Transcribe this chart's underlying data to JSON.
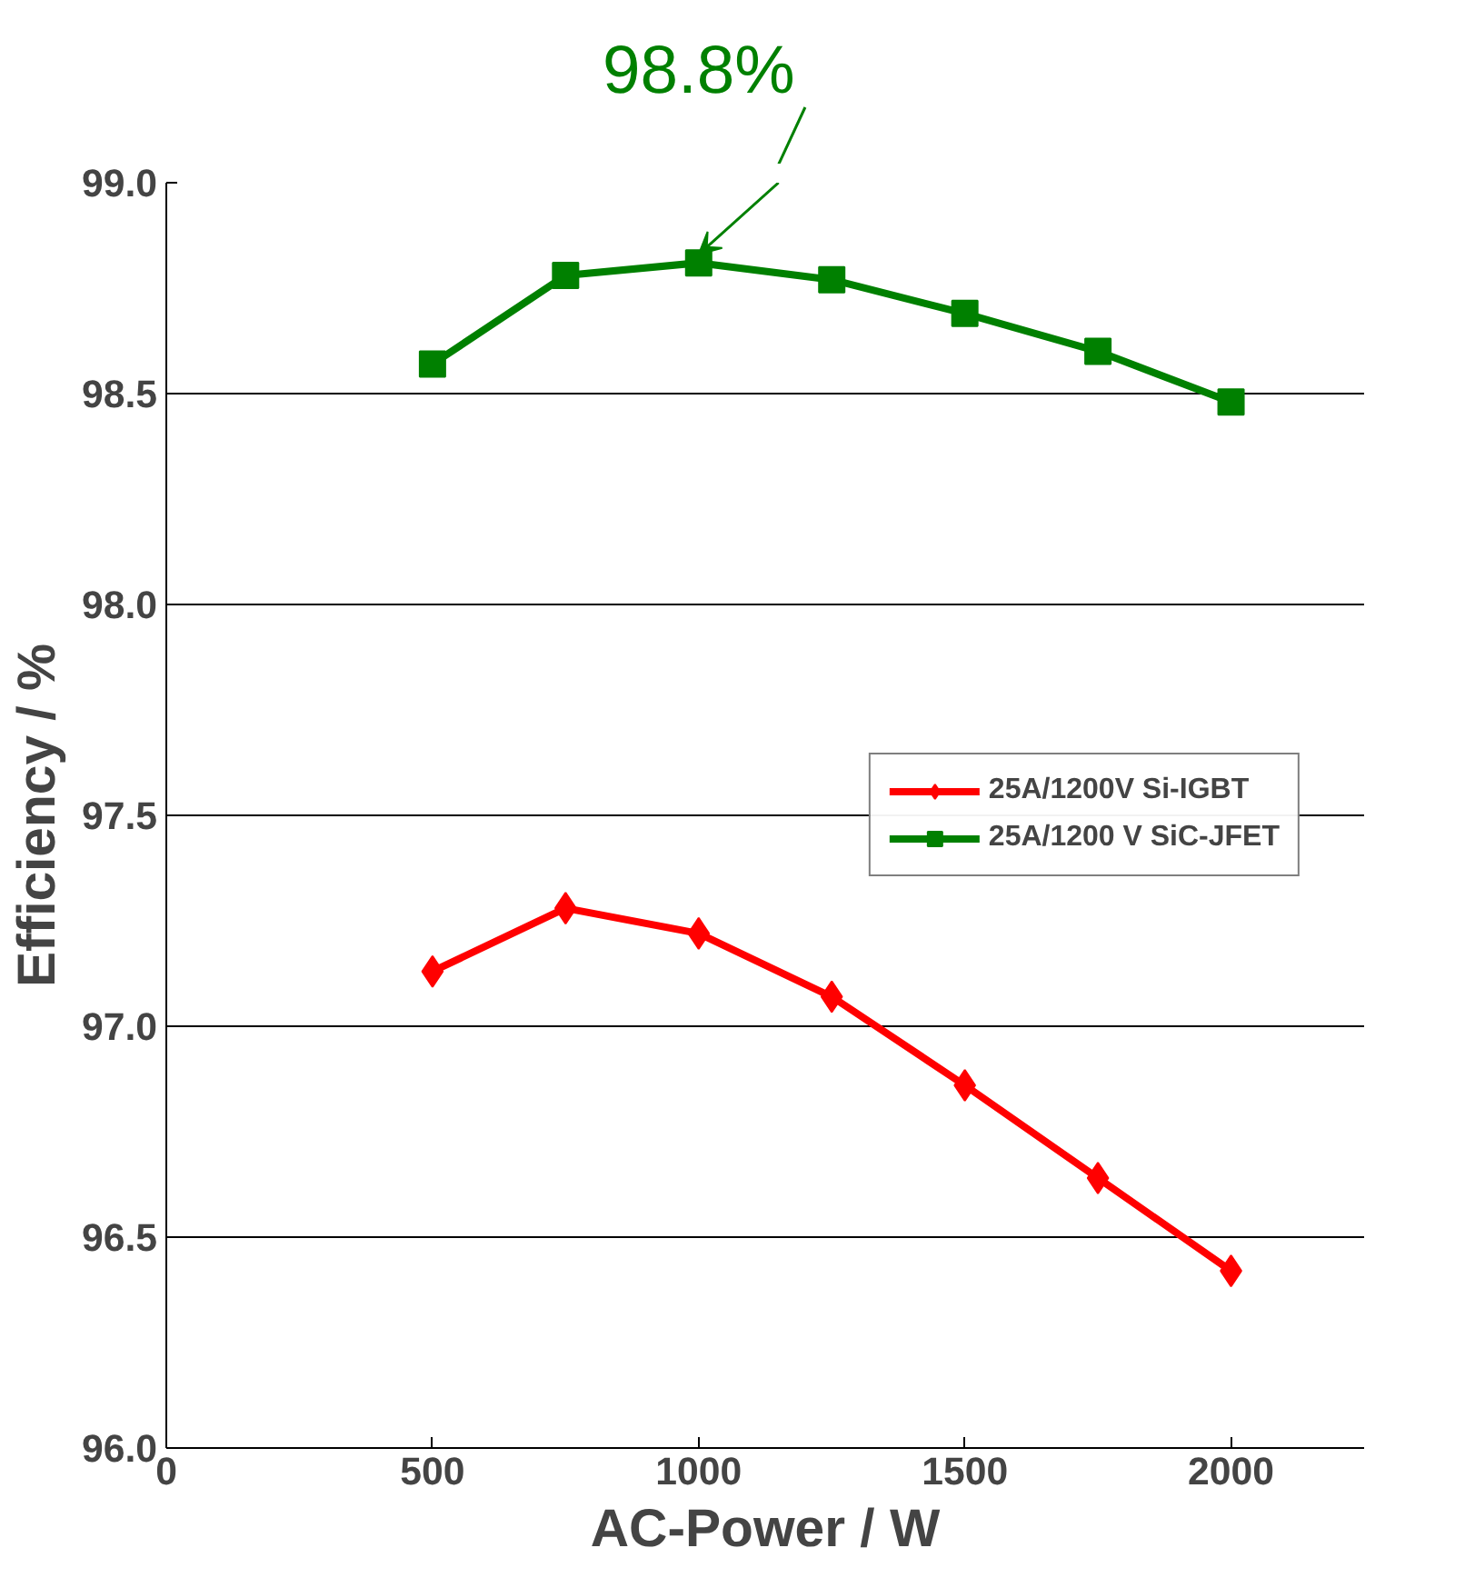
{
  "chart_data": {
    "type": "line",
    "xlabel": "AC-Power / W",
    "ylabel": "Efficiency / %",
    "x": [
      500,
      750,
      1000,
      1250,
      1500,
      1750,
      2000
    ],
    "series": [
      {
        "name": "25A/1200V Si-IGBT",
        "color": "#ff0000",
        "marker": "diamond",
        "values": [
          97.13,
          97.28,
          97.22,
          97.07,
          96.86,
          96.64,
          96.42
        ]
      },
      {
        "name": "25A/1200 V SiC-JFET",
        "color": "#008000",
        "marker": "square",
        "values": [
          98.57,
          98.78,
          98.81,
          98.77,
          98.69,
          98.6,
          98.48
        ]
      }
    ],
    "xlim": [
      0,
      2250
    ],
    "xticks": [
      0,
      500,
      1000,
      1500,
      2000
    ],
    "ylim": [
      96.0,
      99.0
    ],
    "yticks": [
      {
        "value": 96.0,
        "label": "96.0"
      },
      {
        "value": 96.5,
        "label": "96.5"
      },
      {
        "value": 97.0,
        "label": "97.0"
      },
      {
        "value": 97.5,
        "label": "97.5"
      },
      {
        "value": 98.0,
        "label": "98.0"
      },
      {
        "value": 98.5,
        "label": "98.5"
      },
      {
        "value": 99.0,
        "label": "99.0"
      }
    ],
    "grid": "y",
    "legend": "right",
    "line_style": "solid",
    "annotations": [
      {
        "text": "98.8%",
        "x": 1000,
        "y": 98.81
      }
    ]
  }
}
